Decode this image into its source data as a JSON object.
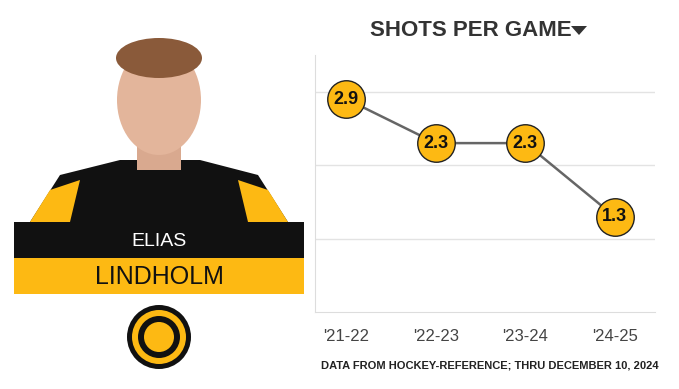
{
  "chart_data": {
    "type": "line",
    "title": "SHOTS PER GAME",
    "categories": [
      "'21-22",
      "'22-23",
      "'23-24",
      "'24-25"
    ],
    "values": [
      2.9,
      2.3,
      2.3,
      1.3
    ],
    "color": "#fdb913",
    "marker": "o",
    "line_style": "solid",
    "ylim": [
      0,
      3.5
    ],
    "yticks": [
      1,
      2,
      3
    ],
    "grid": true,
    "data_labels": true,
    "tick_labels": "x"
  },
  "player": {
    "first_name": "ELIAS",
    "last_name": "LINDHOLM"
  },
  "source": "DATA FROM HOCKEY-REFERENCE; THRU DECEMBER 10, 2024"
}
